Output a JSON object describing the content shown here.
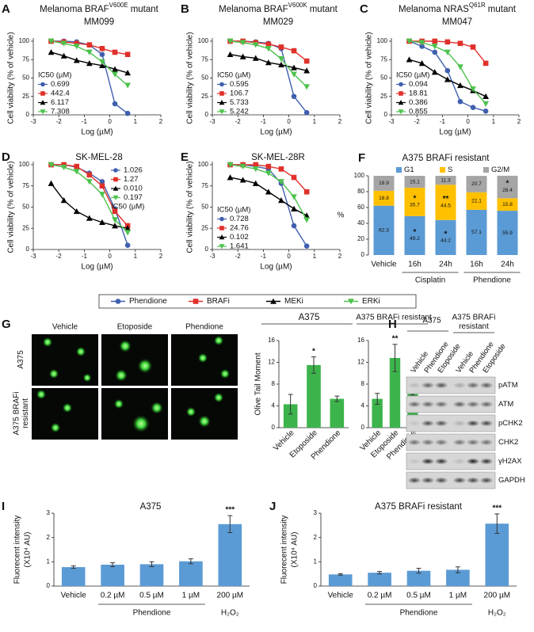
{
  "figure_legend": {
    "entries": [
      {
        "name": "Phendione",
        "color": "#3f5fae",
        "marker": "circle"
      },
      {
        "name": "BRAFi",
        "color": "#e0302a",
        "marker": "square"
      },
      {
        "name": "MEKi",
        "color": "#000000",
        "marker": "triangle"
      },
      {
        "name": "ERKi",
        "color": "#4cc24c",
        "marker": "triangle-down"
      }
    ]
  },
  "comet_assay": {
    "panel": "G",
    "columns": [
      "Vehicle",
      "Etoposide",
      "Phendione"
    ],
    "rows": [
      "A375",
      "A375 BRAFi resistant"
    ]
  },
  "western_blot": {
    "panel": "H",
    "groups": [
      "A375",
      "A375 BRAFi resistant"
    ],
    "lanes": [
      "Vehicle",
      "Phendione",
      "Etoposide"
    ],
    "proteins": [
      "pATM",
      "ATM",
      "pCHK2",
      "CHK2",
      "γH2AX",
      "GAPDH"
    ]
  },
  "chart_data": [
    {
      "type": "scatter",
      "panel": "A",
      "title": "Melanoma BRAF",
      "title_superscript": "V600E",
      "title_tail": "mutant",
      "subtitle": "MM099",
      "xlabel": "Log (µM)",
      "ylabel": "Cell viability (% of vehicle)",
      "xlim": [
        -3,
        2
      ],
      "xticks": [
        -3,
        -2,
        -1,
        0,
        1,
        2
      ],
      "ylim": [
        0,
        100
      ],
      "yticks": [
        0,
        25,
        50,
        75,
        100
      ],
      "x": [
        -2.3,
        -1.8,
        -1.3,
        -0.8,
        -0.3,
        0.2,
        0.7
      ],
      "series": [
        {
          "color": "#3f5fae",
          "marker": "circle",
          "values": [
            100,
            100,
            99,
            95,
            82,
            15,
            2
          ]
        },
        {
          "color": "#e0302a",
          "marker": "square",
          "values": [
            100,
            99,
            97,
            95,
            90,
            85,
            82
          ]
        },
        {
          "color": "#000000",
          "marker": "triangle",
          "values": [
            85,
            80,
            74,
            70,
            67,
            62,
            57
          ]
        },
        {
          "color": "#4cc24c",
          "marker": "triangle-down",
          "values": [
            100,
            97,
            93,
            85,
            72,
            55,
            40
          ]
        }
      ],
      "ic50": {
        "title": "IC50 (µM)",
        "values": [
          "0.699",
          "442.4",
          "6.117",
          "7.308"
        ],
        "title_after": false
      },
      "legend_position": "left"
    },
    {
      "type": "scatter",
      "panel": "B",
      "title": "Melanoma BRAF",
      "title_superscript": "V600K",
      "title_tail": "mutant",
      "subtitle": "MM029",
      "xlabel": "Log (µM)",
      "ylabel": "Cell viability (% of vehicle)",
      "xlim": [
        -3,
        2
      ],
      "xticks": [
        -3,
        -2,
        -1,
        0,
        1,
        2
      ],
      "ylim": [
        0,
        100
      ],
      "yticks": [
        0,
        25,
        50,
        75,
        100
      ],
      "x": [
        -2.3,
        -1.8,
        -1.3,
        -0.8,
        -0.3,
        0.2,
        0.7
      ],
      "series": [
        {
          "color": "#3f5fae",
          "marker": "circle",
          "values": [
            100,
            100,
            99,
            97,
            90,
            25,
            3
          ]
        },
        {
          "color": "#e0302a",
          "marker": "square",
          "values": [
            100,
            100,
            98,
            96,
            92,
            87,
            73
          ]
        },
        {
          "color": "#000000",
          "marker": "triangle",
          "values": [
            82,
            79,
            77,
            71,
            68,
            64,
            60
          ]
        },
        {
          "color": "#4cc24c",
          "marker": "triangle-down",
          "values": [
            100,
            98,
            95,
            90,
            76,
            55,
            38
          ]
        }
      ],
      "ic50": {
        "title": "IC50 (µM)",
        "values": [
          "0.595",
          "106.7",
          "5.733",
          "5.242"
        ],
        "title_after": false
      },
      "legend_position": "left"
    },
    {
      "type": "scatter",
      "panel": "C",
      "title": "Melanoma NRAS",
      "title_superscript": "Q61R",
      "title_tail": "mutant",
      "subtitle": "MM047",
      "xlabel": "Log (µM)",
      "ylabel": "Cell viability (% of vehicle)",
      "xlim": [
        -3,
        2
      ],
      "xticks": [
        -3,
        -2,
        -1,
        0,
        1,
        2
      ],
      "ylim": [
        0,
        100
      ],
      "yticks": [
        0,
        25,
        50,
        75,
        100
      ],
      "x": [
        -2.3,
        -1.8,
        -1.3,
        -0.8,
        -0.3,
        0.2,
        0.7
      ],
      "series": [
        {
          "color": "#3f5fae",
          "marker": "circle",
          "values": [
            100,
            93,
            85,
            60,
            18,
            10,
            5
          ]
        },
        {
          "color": "#e0302a",
          "marker": "square",
          "values": [
            100,
            100,
            100,
            99,
            97,
            92,
            70
          ]
        },
        {
          "color": "#000000",
          "marker": "triangle",
          "values": [
            75,
            70,
            58,
            48,
            40,
            33,
            25
          ]
        },
        {
          "color": "#4cc24c",
          "marker": "triangle-down",
          "values": [
            100,
            98,
            93,
            85,
            65,
            35,
            15
          ]
        }
      ],
      "ic50": {
        "title": "IC50 (µM)",
        "values": [
          "0.094",
          "18.81",
          "0.386",
          "0.855"
        ],
        "title_after": false
      },
      "legend_position": "left"
    },
    {
      "type": "scatter",
      "panel": "D",
      "title": "SK-MEL-28",
      "xlabel": "Log (µM)",
      "ylabel": "Cell viability (% of vehicle)",
      "xlim": [
        -3,
        2
      ],
      "xticks": [
        -3,
        -2,
        -1,
        0,
        1,
        2
      ],
      "ylim": [
        0,
        100
      ],
      "yticks": [
        0,
        25,
        50,
        75,
        100
      ],
      "x": [
        -2.3,
        -1.8,
        -1.3,
        -0.8,
        -0.3,
        0.2,
        0.7
      ],
      "series": [
        {
          "color": "#3f5fae",
          "marker": "circle",
          "values": [
            100,
            100,
            97,
            90,
            80,
            48,
            5
          ]
        },
        {
          "color": "#e0302a",
          "marker": "square",
          "values": [
            100,
            100,
            98,
            88,
            75,
            45,
            28
          ]
        },
        {
          "color": "#000000",
          "marker": "triangle",
          "values": [
            78,
            58,
            45,
            37,
            32,
            28,
            25
          ]
        },
        {
          "color": "#4cc24c",
          "marker": "triangle-down",
          "values": [
            100,
            97,
            92,
            80,
            65,
            35,
            20
          ]
        }
      ],
      "ic50": {
        "title": "IC50 (µM)",
        "values": [
          "1.026",
          "1.27",
          "0.010",
          "0.197"
        ],
        "title_after": true
      },
      "legend_position": "upper right"
    },
    {
      "type": "scatter",
      "panel": "E",
      "title": "SK-MEL-28R",
      "xlabel": "Log (µM)",
      "ylabel": "Cell viability (% of vehicle)",
      "xlim": [
        -3,
        2
      ],
      "xticks": [
        -3,
        -2,
        -1,
        0,
        1,
        2
      ],
      "ylim": [
        0,
        100
      ],
      "yticks": [
        0,
        25,
        50,
        75,
        100
      ],
      "x": [
        -2.3,
        -1.8,
        -1.3,
        -0.8,
        -0.3,
        0.2,
        0.7
      ],
      "series": [
        {
          "color": "#3f5fae",
          "marker": "circle",
          "values": [
            100,
            100,
            98,
            95,
            78,
            28,
            4
          ]
        },
        {
          "color": "#e0302a",
          "marker": "square",
          "values": [
            100,
            100,
            100,
            98,
            95,
            85,
            68
          ]
        },
        {
          "color": "#000000",
          "marker": "triangle",
          "values": [
            85,
            82,
            78,
            68,
            58,
            48,
            40
          ]
        },
        {
          "color": "#4cc24c",
          "marker": "triangle-down",
          "values": [
            100,
            98,
            95,
            90,
            80,
            62,
            35
          ]
        }
      ],
      "ic50": {
        "title": "IC50 (µM)",
        "values": [
          "0.728",
          "24.76",
          "0.102",
          "1.641"
        ],
        "title_after": false
      },
      "legend_position": "left"
    },
    {
      "type": "stacked_bar",
      "panel": "F",
      "title": "A375 BRAFi resistant",
      "ylabel": [
        "%"
      ],
      "categories": [
        "Vehicle",
        "16h",
        "24h",
        "16h",
        "24h"
      ],
      "category_groups": [
        null,
        "Cisplatin",
        "Cisplatin",
        "Phendione",
        "Phendione"
      ],
      "ylim": [
        0,
        100
      ],
      "yticks": [
        0,
        20,
        40,
        60,
        80,
        100
      ],
      "series": [
        {
          "name": "G1",
          "color": "#5b9bd5",
          "values": [
            62.3,
            49.2,
            44.2,
            57.1,
            55.9
          ],
          "stars": [
            null,
            "*",
            "*",
            null,
            null
          ]
        },
        {
          "name": "S",
          "color": "#ffc000",
          "values": [
            18.8,
            35.7,
            44.5,
            22.1,
            15.8
          ],
          "stars": [
            null,
            "*",
            "**",
            null,
            null
          ]
        },
        {
          "name": "G2/M",
          "color": "#a5a5a5",
          "values": [
            18.9,
            15.1,
            11.3,
            20.7,
            28.4
          ],
          "stars": [
            null,
            null,
            null,
            null,
            "*"
          ]
        }
      ]
    },
    {
      "type": "bar",
      "title": "A375",
      "ylabel": [
        "Olive Tail Moment"
      ],
      "categories": [
        "Vehicle",
        "Etoposide",
        "Phendione"
      ],
      "rotate_labels": true,
      "values": [
        4.3,
        11.5,
        5.3
      ],
      "errors": [
        1.8,
        1.5,
        0.5
      ],
      "stars": [
        null,
        "*",
        null
      ],
      "color": "#3cb44b",
      "ylim": [
        0,
        16
      ],
      "yticks": [
        0,
        4,
        8,
        12,
        16
      ]
    },
    {
      "type": "bar",
      "title": "A375 BRAFi resistant",
      "categories": [
        "Vehicle",
        "Etoposide",
        "Phendione"
      ],
      "rotate_labels": true,
      "values": [
        5.3,
        12.8,
        6.2
      ],
      "errors": [
        1.0,
        2.5,
        0.2
      ],
      "stars": [
        null,
        "**",
        null
      ],
      "color": "#3cb44b",
      "ylim": [
        0,
        16
      ],
      "yticks": [
        0,
        4,
        8,
        12,
        16
      ]
    },
    {
      "type": "bar",
      "panel": "I",
      "title": "A375",
      "ylabel": [
        "Fluorecent  intensity",
        "(X10⁴ AU)"
      ],
      "categories": [
        "Vehicle",
        "0.2 µM",
        "0.5 µM",
        "1 µM",
        "200 µM"
      ],
      "category_groups": [
        null,
        "Phendione",
        "Phendione",
        "Phendione",
        "H₂O₂"
      ],
      "values": [
        0.78,
        0.88,
        0.9,
        1.02,
        2.55
      ],
      "errors": [
        0.05,
        0.08,
        0.1,
        0.1,
        0.35
      ],
      "stars": [
        null,
        null,
        null,
        null,
        "***"
      ],
      "color": "#5b9bd5",
      "ylim": [
        0,
        3
      ],
      "yticks": [
        0,
        1,
        2,
        3
      ]
    },
    {
      "type": "bar",
      "panel": "J",
      "title": "A375 BRAFi resistant",
      "ylabel": [
        "Fluorecent  intensity",
        "(X10⁴ AU)"
      ],
      "categories": [
        "Vehicle",
        "0.2 µM",
        "0.5 µM",
        "1 µM",
        "200 µM"
      ],
      "category_groups": [
        null,
        "Phendione",
        "Phendione",
        "Phendione",
        "H₂O₂"
      ],
      "values": [
        0.48,
        0.55,
        0.63,
        0.67,
        2.57
      ],
      "errors": [
        0.03,
        0.05,
        0.1,
        0.12,
        0.4
      ],
      "stars": [
        null,
        null,
        null,
        null,
        "***"
      ],
      "color": "#5b9bd5",
      "ylim": [
        0,
        3
      ],
      "yticks": [
        0,
        1,
        2,
        3
      ]
    }
  ]
}
